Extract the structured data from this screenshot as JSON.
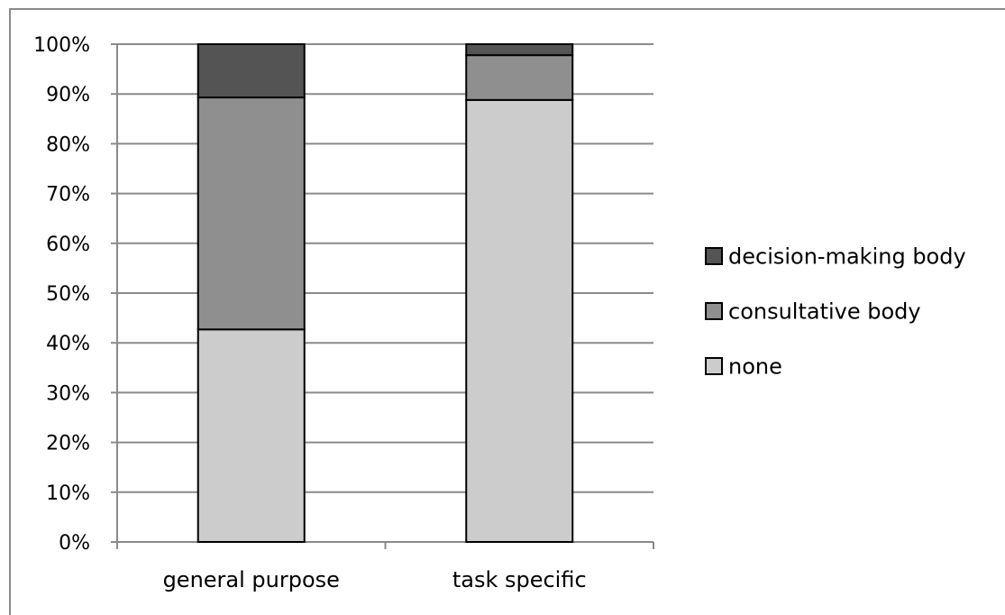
{
  "chart_data": {
    "type": "bar",
    "stacked": true,
    "percent": true,
    "categories": [
      "general purpose",
      "task specific"
    ],
    "series": [
      {
        "name": "none",
        "values": [
          42.7,
          88.8
        ],
        "color": "#cccccc"
      },
      {
        "name": "consultative body",
        "values": [
          46.6,
          9.0
        ],
        "color": "#8f8f8f"
      },
      {
        "name": "decision-making body",
        "values": [
          10.7,
          2.2
        ],
        "color": "#545454"
      }
    ],
    "y_ticks": [
      "0%",
      "10%",
      "20%",
      "30%",
      "40%",
      "50%",
      "60%",
      "70%",
      "80%",
      "90%",
      "100%"
    ],
    "ylim": [
      0,
      100
    ],
    "grid": true,
    "legend_position": "right",
    "legend_order": [
      "decision-making body",
      "consultative body",
      "none"
    ],
    "gridline_color": "#8a8a8a",
    "bar_outline_color": "#000000"
  }
}
